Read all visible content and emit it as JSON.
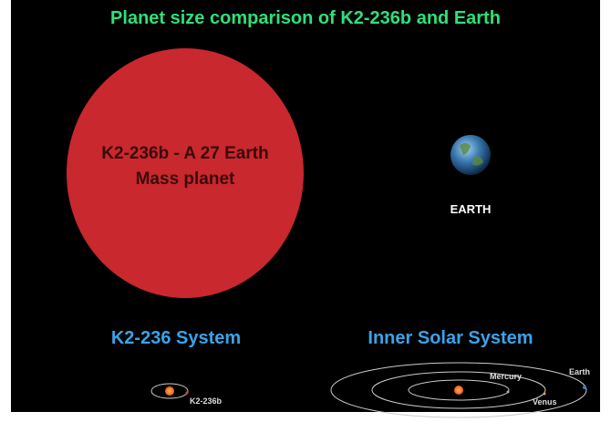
{
  "header": {
    "title": "Planet size comparison of K2-236b and Earth"
  },
  "planets": {
    "k2_236b": {
      "label_lines": [
        "K2-236b - A 27 Earth",
        "Mass planet"
      ]
    },
    "earth": {
      "label": "EARTH"
    }
  },
  "systems": {
    "k2_236": {
      "title": "K2-236 System",
      "planet_label": "K2-236b"
    },
    "inner_solar": {
      "title": "Inner Solar System",
      "planet_labels": [
        "Mercury",
        "Venus",
        "Earth"
      ]
    }
  }
}
